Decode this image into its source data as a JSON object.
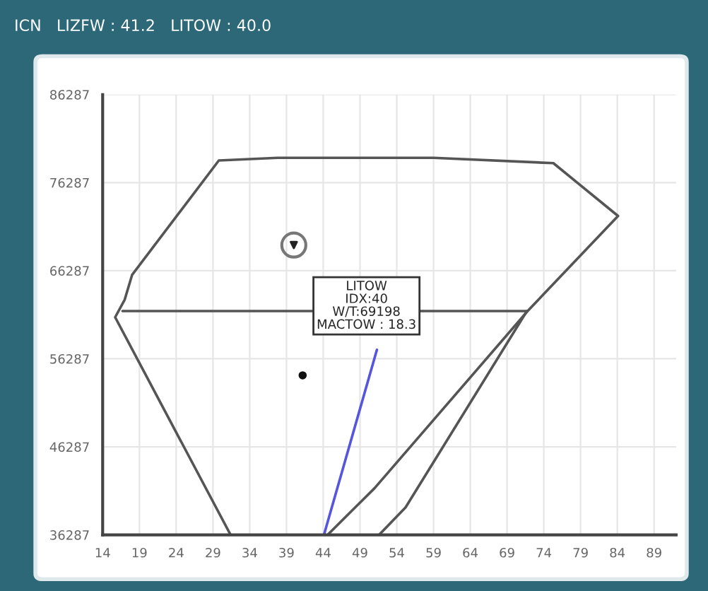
{
  "chart_data": {
    "type": "line",
    "title": "ICN   LIZFW : 41.2   LITOW : 40.0",
    "xlim": [
      14,
      92
    ],
    "ylim": [
      36287,
      86287
    ],
    "xticks": [
      14,
      19,
      24,
      29,
      34,
      39,
      44,
      49,
      54,
      59,
      64,
      69,
      74,
      79,
      84,
      89
    ],
    "yticks": [
      36287,
      46287,
      56287,
      66287,
      76287,
      86287
    ],
    "grid": true,
    "line_style": "solid",
    "series": [
      {
        "color": "#555555",
        "marker": "none",
        "x": [
          31.4,
          15.7,
          17.0,
          18.0,
          29.8,
          37.8,
          59.0,
          75.3,
          84.1,
          71.8,
          51.0,
          44.6
        ],
        "values": [
          36287,
          61000,
          63000,
          65800,
          78800,
          79100,
          79100,
          78500,
          72500,
          61700,
          41600,
          36287
        ]
      },
      {
        "color": "#555555",
        "marker": "none",
        "x": [
          16.7,
          71.7
        ],
        "values": [
          61700,
          61700
        ]
      },
      {
        "color": "#555555",
        "marker": "none",
        "x": [
          71.7,
          55.2,
          51.6
        ],
        "values": [
          61700,
          39400,
          36287
        ]
      },
      {
        "color": "#5555dd",
        "marker": "none",
        "x": [
          44.1,
          51.3
        ],
        "values": [
          36287,
          57300
        ]
      },
      {
        "type": "scatter",
        "color": "#222222",
        "marker": "triangle",
        "x": [
          40.0
        ],
        "values": [
          69198
        ]
      },
      {
        "type": "scatter",
        "color": "#111111",
        "marker": "circle",
        "x": [
          41.2
        ],
        "values": [
          54400
        ]
      }
    ],
    "annotations": [
      "LITOW\nIDX:40\nW/T:69198\nMACTOW : 18.3"
    ]
  }
}
